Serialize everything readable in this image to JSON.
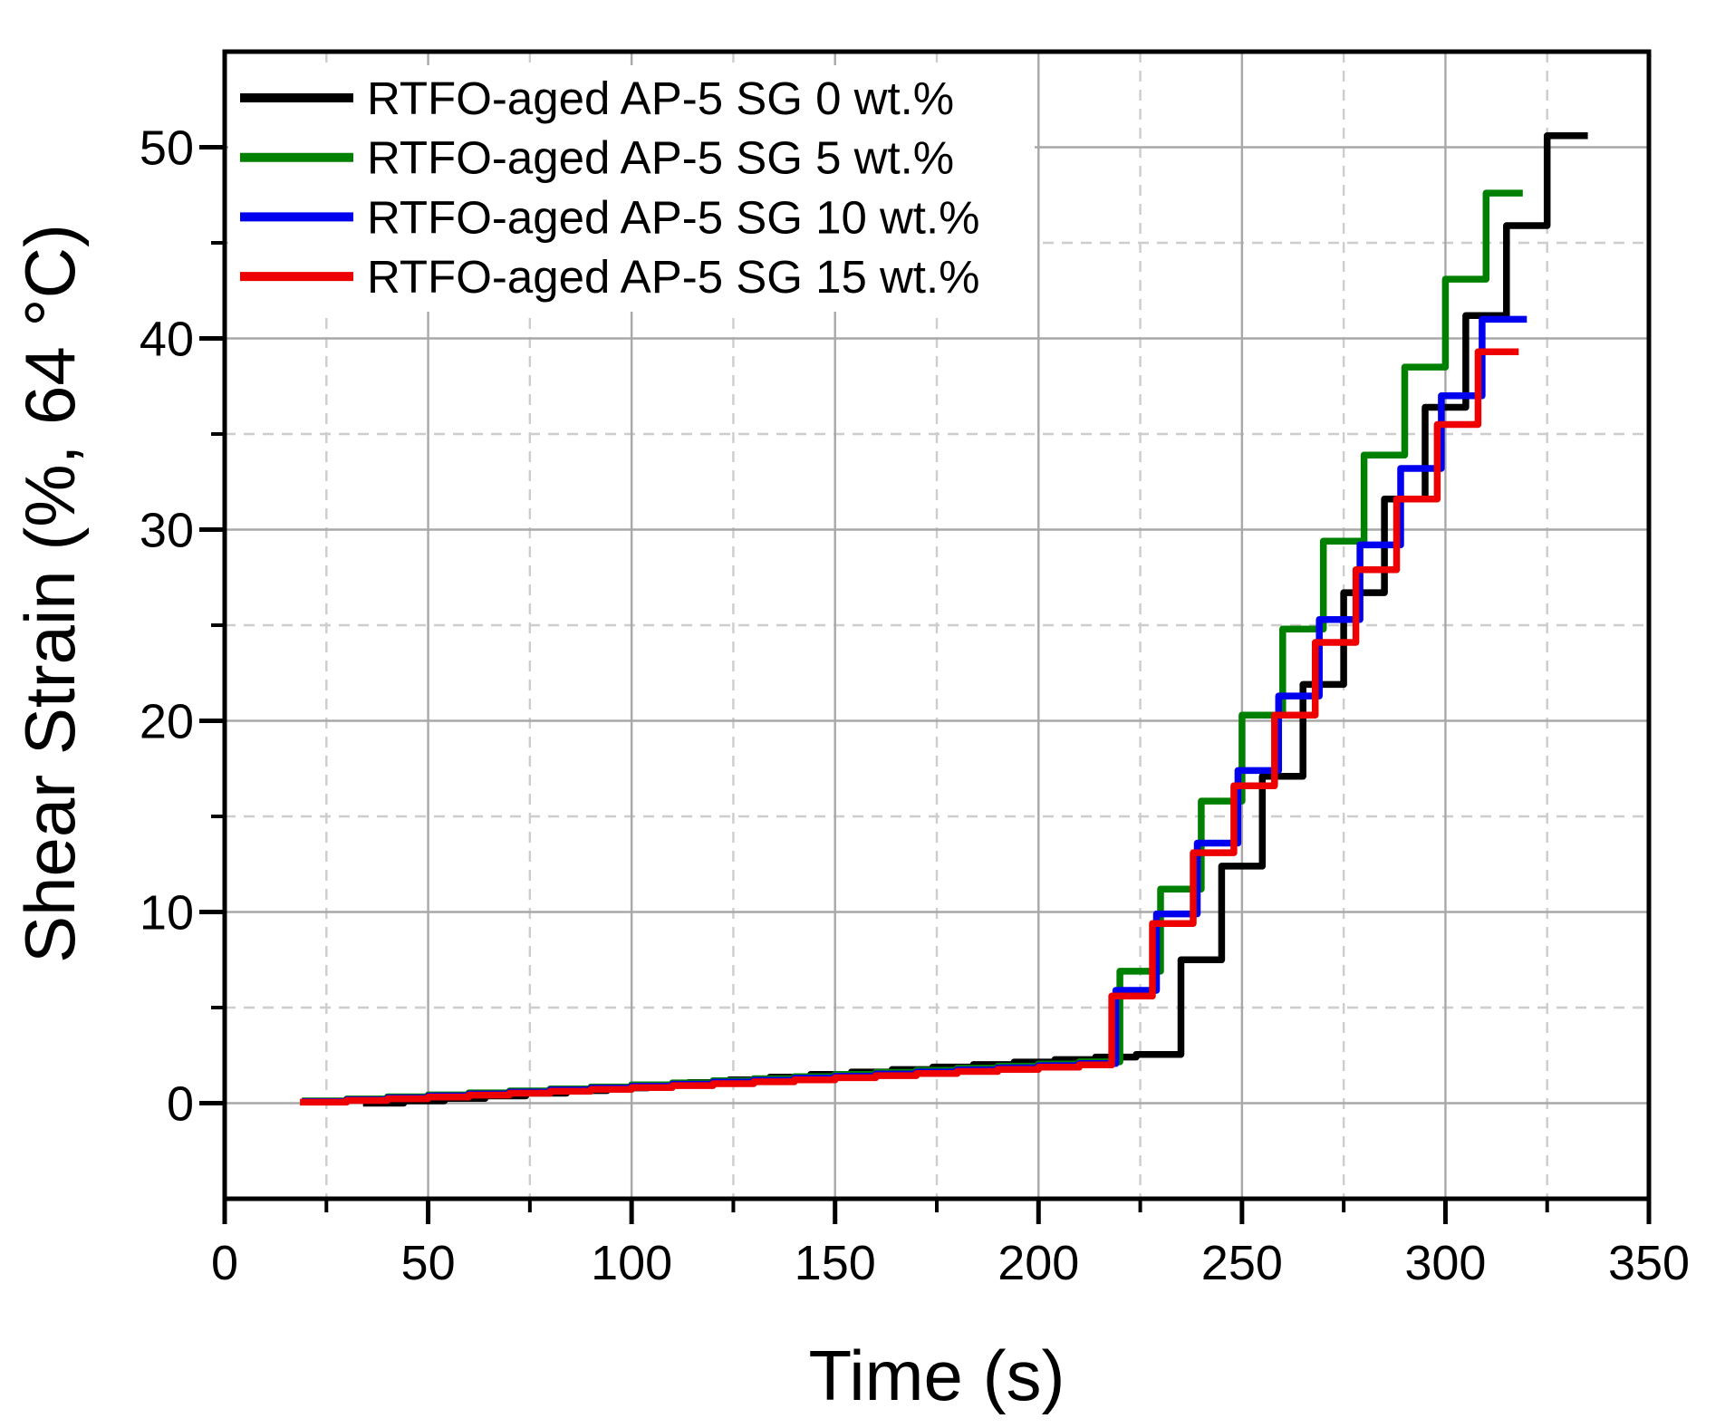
{
  "chart_data": {
    "type": "line",
    "subtype": "step-creep-recovery",
    "title": "",
    "xlabel": "Time (s)",
    "ylabel": "Shear Strain (%, 64 °C)",
    "xlim": [
      0,
      350
    ],
    "ylim": [
      -5,
      55
    ],
    "x_major_ticks": [
      0,
      50,
      100,
      150,
      200,
      250,
      300,
      350
    ],
    "x_minor_ticks": [
      25,
      75,
      125,
      175,
      225,
      275,
      325
    ],
    "y_major_ticks": [
      0,
      10,
      20,
      30,
      40,
      50
    ],
    "y_minor_ticks": [
      5,
      15,
      25,
      35,
      45
    ],
    "grid": {
      "major_style": "solid",
      "minor_style": "dashed",
      "major_color": "#a8a8a8",
      "minor_color": "#cdcdcd"
    },
    "axis_color": "#000000",
    "legend": {
      "position": "top-left",
      "entries": [
        "RTFO-aged AP-5 SG 0 wt.%",
        "RTFO-aged AP-5 SG 5 wt.%",
        "RTFO-aged AP-5 SG 10 wt.%",
        "RTFO-aged AP-5 SG 15 wt.%"
      ]
    },
    "series": [
      {
        "name": "RTFO-aged AP-5 SG 0 wt.%",
        "color": "#000000",
        "plateaus": [
          [
            34,
            0.0
          ],
          [
            44,
            0.12
          ],
          [
            54,
            0.25
          ],
          [
            64,
            0.38
          ],
          [
            74,
            0.52
          ],
          [
            84,
            0.66
          ],
          [
            94,
            0.8
          ],
          [
            104,
            0.94
          ],
          [
            114,
            1.08
          ],
          [
            124,
            1.22
          ],
          [
            134,
            1.36
          ],
          [
            144,
            1.5
          ],
          [
            154,
            1.63
          ],
          [
            164,
            1.76
          ],
          [
            174,
            1.89
          ],
          [
            184,
            2.02
          ],
          [
            194,
            2.15
          ],
          [
            204,
            2.28
          ],
          [
            214,
            2.41
          ],
          [
            224,
            2.55
          ],
          [
            235,
            7.5
          ],
          [
            245,
            12.4
          ],
          [
            255,
            17.1
          ],
          [
            265,
            21.9
          ],
          [
            275,
            26.7
          ],
          [
            285,
            31.6
          ],
          [
            295,
            36.4
          ],
          [
            305,
            41.2
          ],
          [
            315,
            45.9
          ],
          [
            325,
            50.6
          ]
        ],
        "end_time": 335
      },
      {
        "name": "RTFO-aged AP-5 SG 5 wt.%",
        "color": "#008000",
        "plateaus": [
          [
            19,
            0.12
          ],
          [
            30,
            0.22
          ],
          [
            40,
            0.33
          ],
          [
            50,
            0.43
          ],
          [
            60,
            0.54
          ],
          [
            70,
            0.64
          ],
          [
            80,
            0.75
          ],
          [
            90,
            0.85
          ],
          [
            100,
            0.96
          ],
          [
            110,
            1.06
          ],
          [
            120,
            1.17
          ],
          [
            130,
            1.28
          ],
          [
            140,
            1.39
          ],
          [
            150,
            1.5
          ],
          [
            160,
            1.61
          ],
          [
            170,
            1.72
          ],
          [
            180,
            1.83
          ],
          [
            190,
            1.94
          ],
          [
            200,
            2.05
          ],
          [
            210,
            2.16
          ],
          [
            220,
            6.9
          ],
          [
            230,
            11.2
          ],
          [
            240,
            15.8
          ],
          [
            250,
            20.3
          ],
          [
            260,
            24.8
          ],
          [
            270,
            29.4
          ],
          [
            280,
            33.9
          ],
          [
            290,
            38.5
          ],
          [
            300,
            43.1
          ],
          [
            310,
            47.6
          ]
        ],
        "end_time": 319
      },
      {
        "name": "RTFO-aged AP-5 SG 10 wt.%",
        "color": "#0000ee",
        "plateaus": [
          [
            19,
            0.08
          ],
          [
            30,
            0.18
          ],
          [
            40,
            0.28
          ],
          [
            50,
            0.38
          ],
          [
            60,
            0.48
          ],
          [
            70,
            0.58
          ],
          [
            80,
            0.69
          ],
          [
            90,
            0.79
          ],
          [
            100,
            0.89
          ],
          [
            110,
            0.99
          ],
          [
            120,
            1.1
          ],
          [
            130,
            1.2
          ],
          [
            140,
            1.31
          ],
          [
            150,
            1.41
          ],
          [
            160,
            1.52
          ],
          [
            170,
            1.63
          ],
          [
            180,
            1.74
          ],
          [
            190,
            1.85
          ],
          [
            200,
            1.96
          ],
          [
            210,
            2.07
          ],
          [
            219,
            5.9
          ],
          [
            229,
            9.9
          ],
          [
            239,
            13.6
          ],
          [
            249,
            17.4
          ],
          [
            259,
            21.3
          ],
          [
            269,
            25.3
          ],
          [
            279,
            29.2
          ],
          [
            289,
            33.2
          ],
          [
            299,
            37.0
          ],
          [
            309,
            41.0
          ]
        ],
        "end_time": 320
      },
      {
        "name": "RTFO-aged AP-5 SG 15 wt.%",
        "color": "#ee0000",
        "plateaus": [
          [
            18.5,
            0.05
          ],
          [
            30,
            0.14
          ],
          [
            40,
            0.23
          ],
          [
            50,
            0.32
          ],
          [
            60,
            0.42
          ],
          [
            70,
            0.52
          ],
          [
            80,
            0.62
          ],
          [
            90,
            0.72
          ],
          [
            100,
            0.82
          ],
          [
            110,
            0.92
          ],
          [
            120,
            1.02
          ],
          [
            130,
            1.12
          ],
          [
            140,
            1.22
          ],
          [
            150,
            1.33
          ],
          [
            160,
            1.44
          ],
          [
            170,
            1.55
          ],
          [
            180,
            1.66
          ],
          [
            190,
            1.77
          ],
          [
            200,
            1.88
          ],
          [
            210,
            2.0
          ],
          [
            218,
            5.6
          ],
          [
            228,
            9.4
          ],
          [
            238,
            13.1
          ],
          [
            248,
            16.6
          ],
          [
            258,
            20.3
          ],
          [
            268,
            24.1
          ],
          [
            278,
            27.9
          ],
          [
            288,
            31.6
          ],
          [
            298,
            35.5
          ],
          [
            308,
            39.3
          ]
        ],
        "end_time": 318
      }
    ]
  }
}
